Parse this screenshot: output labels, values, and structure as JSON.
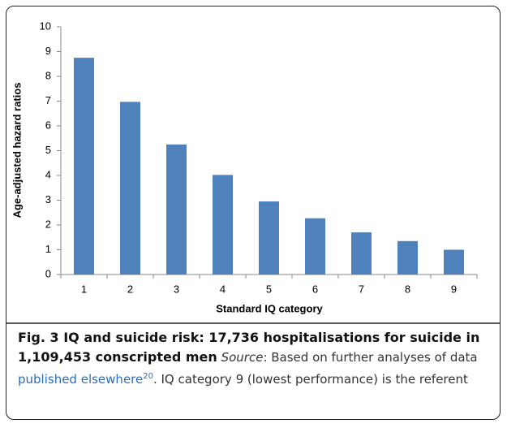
{
  "chart_data": {
    "type": "bar",
    "x_label": "Standard IQ category",
    "y_label": "Age-adjusted hazard ratios",
    "categories": [
      "1",
      "2",
      "3",
      "4",
      "5",
      "6",
      "7",
      "8",
      "9"
    ],
    "values": [
      8.75,
      6.97,
      5.25,
      4.02,
      2.95,
      2.27,
      1.7,
      1.35,
      1.0
    ],
    "color": "#4f81bd",
    "ylim": [
      0,
      10
    ],
    "yticks": [
      0,
      1,
      2,
      3,
      4,
      5,
      6,
      7,
      8,
      9,
      10
    ],
    "grid": false
  },
  "caption": {
    "title": "Fig. 3 IQ and suicide risk: 17,736 hospitalisations for suicide in 1,109,453 conscripted men",
    "source_label": "Source",
    "text_before_link": ": Based on further analyses of data",
    "link": "published elsewhere",
    "citation": "20",
    "text_after": ". IQ category 9 (lowest performance) is the referent"
  }
}
